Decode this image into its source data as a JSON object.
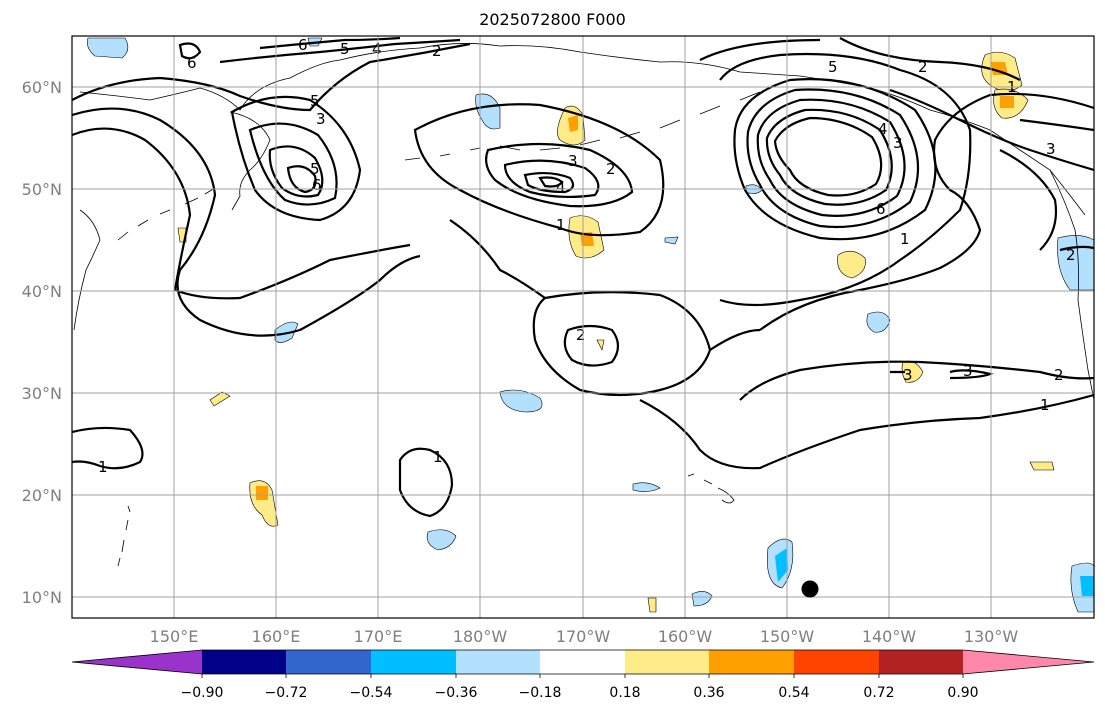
{
  "title": "2025072800 F000",
  "lat_labels": [
    "60°N",
    "50°N",
    "40°N",
    "30°N",
    "20°N",
    "10°N"
  ],
  "lon_labels": [
    "150°E",
    "160°E",
    "170°E",
    "180°W",
    "170°W",
    "160°W",
    "150°W",
    "140°W",
    "130°W"
  ],
  "colorbar": {
    "colors": [
      "#9933cc",
      "#000088",
      "#3366cc",
      "#00bfff",
      "#b3e0ff",
      "#ffffff",
      "#ffeb88",
      "#ffa000",
      "#ff4400",
      "#b22222",
      "#ff88aa"
    ],
    "ticks": [
      "−0.90",
      "−0.72",
      "−0.54",
      "−0.36",
      "−0.18",
      "0.18",
      "0.36",
      "0.54",
      "0.72",
      "0.90"
    ]
  },
  "contour_labels": [
    "6",
    "5",
    "4",
    "2",
    "6",
    "5",
    "3",
    "6",
    "5",
    "4",
    "3",
    "2",
    "1",
    "5",
    "4",
    "3",
    "6",
    "1",
    "2",
    "1",
    "2",
    "3",
    "3",
    "3",
    "2",
    "1",
    "1",
    "1",
    "2"
  ],
  "colors": {
    "contour": "#000000",
    "grid": "#a0a0a0",
    "coast": "#000000",
    "marker": "#000000"
  }
}
